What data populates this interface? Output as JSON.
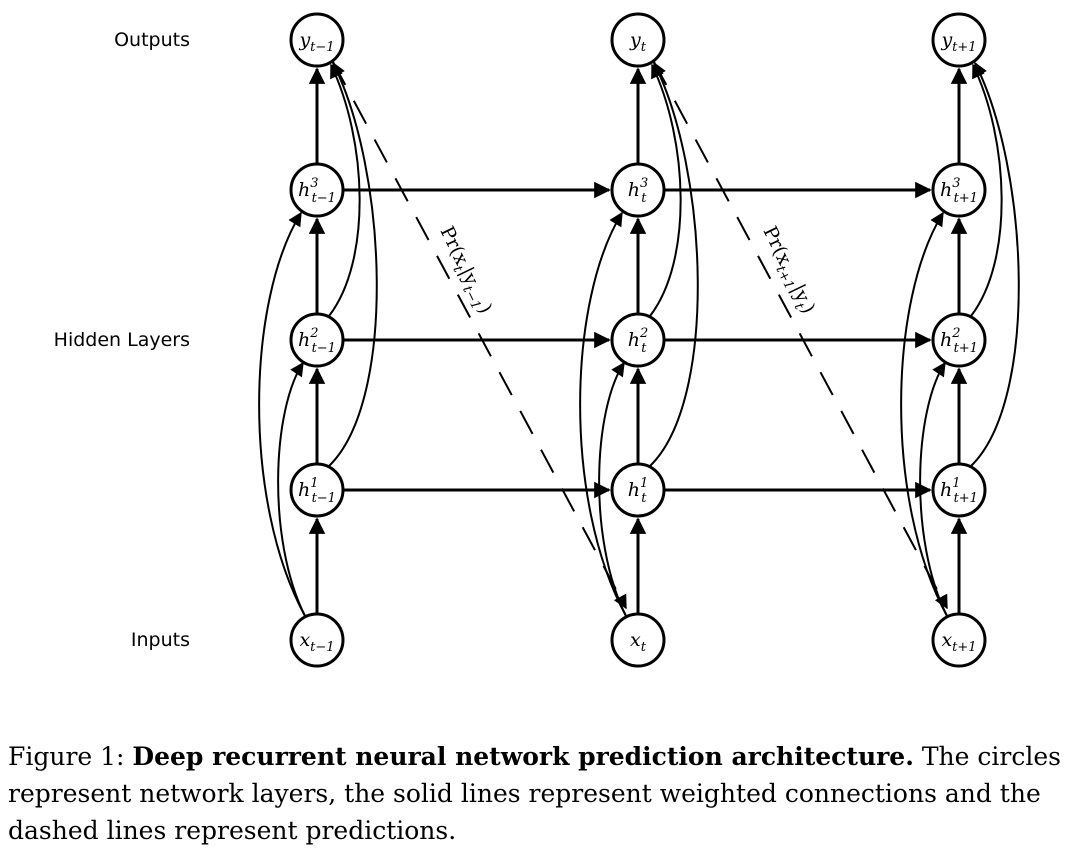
{
  "row_labels": {
    "outputs": "Outputs",
    "hidden": "Hidden Layers",
    "inputs": "Inputs"
  },
  "nodes": {
    "y": {
      "base": "y",
      "subs": [
        "t−1",
        "t",
        "t+1"
      ]
    },
    "h3": {
      "base": "h",
      "sup": "3",
      "subs": [
        "t−1",
        "t",
        "t+1"
      ]
    },
    "h2": {
      "base": "h",
      "sup": "2",
      "subs": [
        "t−1",
        "t",
        "t+1"
      ]
    },
    "h1": {
      "base": "h",
      "sup": "1",
      "subs": [
        "t−1",
        "t",
        "t+1"
      ]
    },
    "x": {
      "base": "x",
      "subs": [
        "t−1",
        "t",
        "t+1"
      ]
    }
  },
  "predictions": [
    {
      "pre": "Pr(x",
      "s1": "t",
      "mid": "|y",
      "s2": "t−1",
      "post": ")"
    },
    {
      "pre": "Pr(x",
      "s1": "t+1",
      "mid": "|y",
      "s2": "t",
      "post": ")"
    }
  ],
  "caption": {
    "prefix": "Figure 1: ",
    "title": "Deep recurrent neural network prediction architecture.",
    "body": " The circles represent network layers, the solid lines represent weighted connections and the dashed lines represent predictions."
  }
}
